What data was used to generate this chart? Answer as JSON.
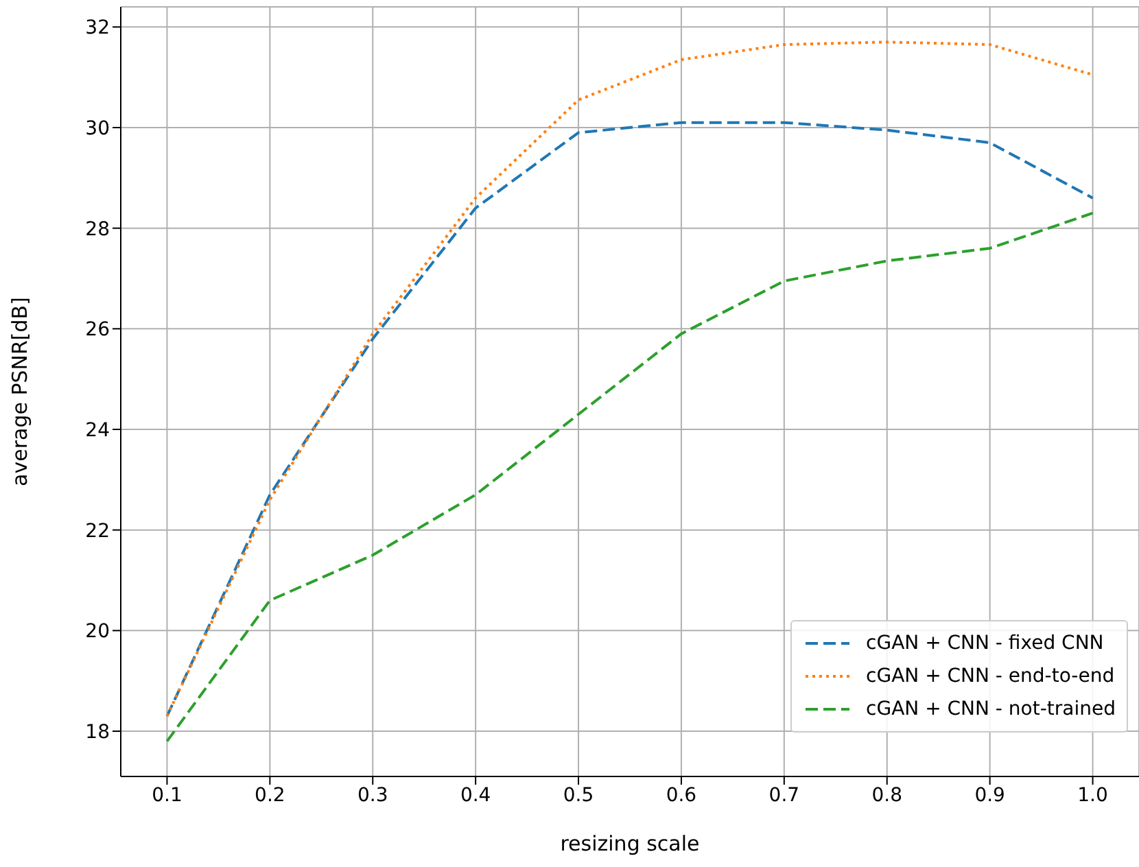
{
  "chart_data": {
    "type": "line",
    "xlabel": "resizing scale",
    "ylabel": "average PSNR[dB]",
    "x": [
      0.1,
      0.2,
      0.3,
      0.4,
      0.5,
      0.6,
      0.7,
      0.8,
      0.9,
      1.0
    ],
    "series": [
      {
        "name": "cGAN + CNN - fixed CNN",
        "color": "#1f77b4",
        "line_style": "dashed",
        "values": [
          18.3,
          22.7,
          25.8,
          28.4,
          29.9,
          30.1,
          30.1,
          29.95,
          29.7,
          28.6
        ]
      },
      {
        "name": "cGAN + CNN - end-to-end",
        "color": "#ff7f0e",
        "line_style": "dotted",
        "values": [
          18.3,
          22.6,
          25.9,
          28.6,
          30.55,
          31.35,
          31.65,
          31.7,
          31.65,
          31.05
        ]
      },
      {
        "name": "cGAN + CNN - not-trained",
        "color": "#2ca02c",
        "line_style": "dashed",
        "values": [
          17.8,
          20.6,
          21.5,
          22.7,
          24.3,
          25.9,
          26.95,
          27.35,
          27.6,
          28.3
        ]
      }
    ],
    "xlim": [
      0.055,
      1.045
    ],
    "xticks": [
      {
        "value": 0.1,
        "label": "0.1"
      },
      {
        "value": 0.2,
        "label": "0.2"
      },
      {
        "value": 0.3,
        "label": "0.3"
      },
      {
        "value": 0.4,
        "label": "0.4"
      },
      {
        "value": 0.5,
        "label": "0.5"
      },
      {
        "value": 0.6,
        "label": "0.6"
      },
      {
        "value": 0.7,
        "label": "0.7"
      },
      {
        "value": 0.8,
        "label": "0.8"
      },
      {
        "value": 0.9,
        "label": "0.9"
      },
      {
        "value": 1.0,
        "label": "1.0"
      }
    ],
    "ylim": [
      17.1,
      32.4
    ],
    "yticks": [
      18,
      20,
      22,
      24,
      26,
      28,
      30,
      32
    ],
    "grid": true,
    "legend": "bottom right",
    "marker": "none"
  }
}
